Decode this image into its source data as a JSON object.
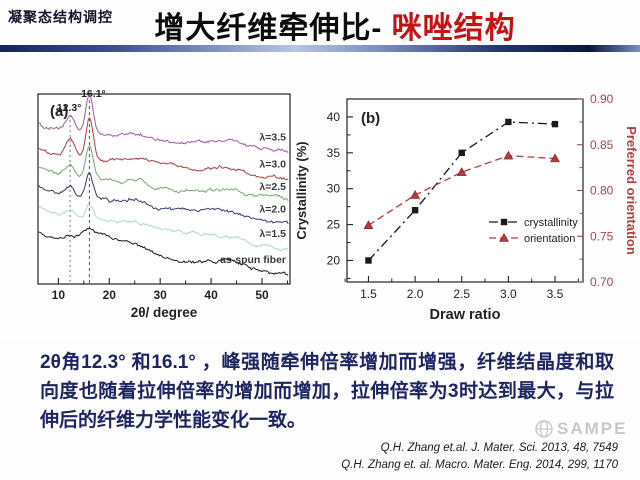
{
  "header": {
    "badge": "凝聚态结构调控",
    "title_black": "增大纤维牵伸比-",
    "title_red": "咪唑结构"
  },
  "body": {
    "paragraph": "2θ角12.3° 和16.1° ，峰强随牵伸倍率增加而增强，纤维结晶度和取向度也随着拉伸倍率的增加而增加，拉伸倍率为3时达到最大，与拉伸后的纤维力学性能变化一致。"
  },
  "citations": [
    "Q.H. Zhang et.al.  J. Mater. Sci. 2013, 48, 7549",
    "Q.H. Zhang et. al. Macro. Mater. Eng. 2014, 299, 1170"
  ],
  "watermark": {
    "text": "SAMPE",
    "icon": "globe-icon"
  },
  "colors": {
    "title_accent": "#c31313",
    "rule_navy": "#17235a",
    "body_text": "#1f2563",
    "right_axis": "#a84848"
  },
  "chart_data": [
    {
      "id": "xrd",
      "type": "line",
      "panel_label": "(a)",
      "xlabel": "2θ/ degree",
      "xlim": [
        6,
        55.5
      ],
      "xticks": [
        "10",
        "20",
        "30",
        "40",
        "50"
      ],
      "peak_annotations": [
        {
          "x": 12.3,
          "label": "12.3°"
        },
        {
          "x": 16.1,
          "label": "16.1°"
        }
      ],
      "series": [
        {
          "name": "λ=3.5",
          "color": "#9d5ca2",
          "baseline": 155,
          "slope": 0.45,
          "peak12_height": 15,
          "peak16_height": 40
        },
        {
          "name": "λ=3.0",
          "color": "#ad3f3f",
          "baseline": 130,
          "slope": 0.5,
          "peak12_height": 17,
          "peak16_height": 40
        },
        {
          "name": "λ=2.5",
          "color": "#79a873",
          "baseline": 110,
          "slope": 0.55,
          "peak12_height": 12,
          "peak16_height": 32
        },
        {
          "name": "λ=2.0",
          "color": "#323d6f",
          "baseline": 92,
          "slope": 0.65,
          "peak12_height": 9,
          "peak16_height": 26
        },
        {
          "name": "λ=1.5",
          "color": "#aed9d1",
          "baseline": 72,
          "slope": 0.75,
          "peak12_height": 6,
          "peak16_height": 15
        },
        {
          "name": "as-spun fiber",
          "color": "#1c1c1c",
          "baseline": 46,
          "slope": 0.75,
          "peak12_height": 2,
          "peak16_height": 5,
          "amorphous_halo": 15
        }
      ]
    },
    {
      "id": "draw_ratio",
      "type": "line",
      "panel_label": "(b)",
      "xlabel": "Draw ratio",
      "x": [
        1.5,
        2.0,
        2.5,
        3.0,
        3.5
      ],
      "xticks": [
        "1.5",
        "2.0",
        "2.5",
        "3.0",
        "3.5"
      ],
      "xlim": [
        1.27,
        3.8
      ],
      "ylabel_left": "Crystallinity (%)",
      "ylim_left": [
        17,
        42.5
      ],
      "yticks_left": [
        "20",
        "25",
        "30",
        "35",
        "40"
      ],
      "ylabel_right": "Preferred orientation",
      "ylim_right": [
        0.7,
        0.9
      ],
      "yticks_right": [
        "0.70",
        "0.75",
        "0.80",
        "0.85",
        "0.90"
      ],
      "legend_position": "middle-right",
      "series": [
        {
          "name": "crystallinity",
          "axis": "left",
          "marker": "square",
          "line": "dash-dot",
          "color": "#1a1a1a",
          "values": [
            20,
            27,
            35,
            39.3,
            39
          ]
        },
        {
          "name": "orientation",
          "axis": "right",
          "marker": "triangle",
          "line": "dashed",
          "color": "#b23b3b",
          "values": [
            0.762,
            0.795,
            0.82,
            0.838,
            0.835
          ]
        }
      ]
    }
  ]
}
